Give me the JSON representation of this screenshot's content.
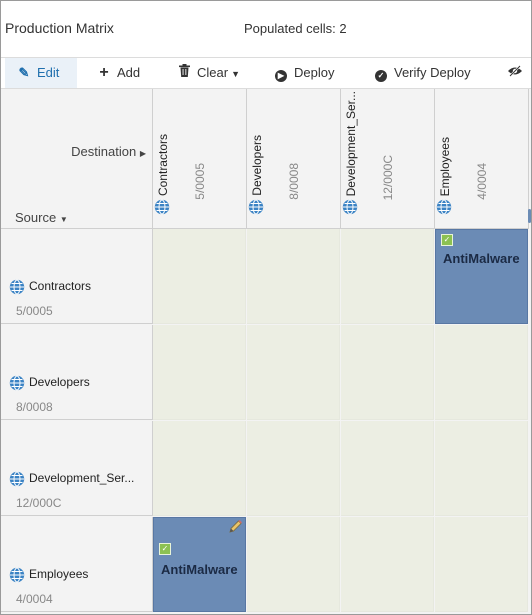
{
  "header": {
    "title": "Production Matrix",
    "populated_label": "Populated cells: 2"
  },
  "toolbar": {
    "edit": "Edit",
    "add": "Add",
    "clear": "Clear",
    "deploy": "Deploy",
    "verify_deploy": "Verify Deploy"
  },
  "matrix": {
    "destination_label": "Destination",
    "source_label": "Source",
    "columns": [
      {
        "name": "Contractors",
        "code": "5/0005"
      },
      {
        "name": "Developers",
        "code": "8/0008"
      },
      {
        "name": "Development_Ser...",
        "code": "12/000C"
      },
      {
        "name": "Employees",
        "code": "4/0004"
      }
    ],
    "rows": [
      {
        "name": "Contractors",
        "code": "5/0005"
      },
      {
        "name": "Developers",
        "code": "8/0008"
      },
      {
        "name": "Development_Ser...",
        "code": "12/000C"
      },
      {
        "name": "Employees",
        "code": "4/0004"
      }
    ],
    "cells": [
      {
        "row": "Contractors",
        "col": "Employees",
        "policy": "AntiMalware",
        "status": "deployed"
      },
      {
        "row": "Employees",
        "col": "Contractors",
        "policy": "AntiMalware",
        "status": "deployed"
      }
    ]
  },
  "colors": {
    "populated_cell": "#6b8bb5",
    "empty_cell": "#eceee3",
    "accent": "#1f6fae",
    "check": "#8cc152"
  }
}
